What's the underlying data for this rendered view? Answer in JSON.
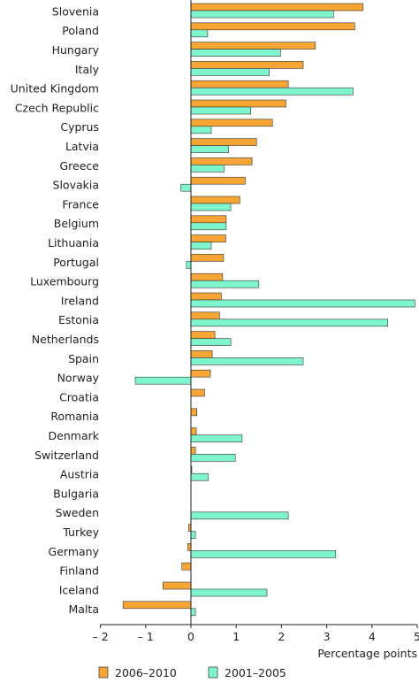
{
  "chart_data": {
    "type": "bar",
    "orientation": "horizontal",
    "categories": [
      "Slovenia",
      "Poland",
      "Hungary",
      "Italy",
      "United Kingdom",
      "Czech Republic",
      "Cyprus",
      "Latvia",
      "Greece",
      "Slovakia",
      "France",
      "Belgium",
      "Lithuania",
      "Portugal",
      "Luxembourg",
      "Ireland",
      "Estonia",
      "Netherlands",
      "Spain",
      "Norway",
      "Croatia",
      "Romania",
      "Denmark",
      "Switzerland",
      "Austria",
      "Bulgaria",
      "Sweden",
      "Turkey",
      "Germany",
      "Finland",
      "Iceland",
      "Malta"
    ],
    "series": [
      {
        "name": "2006–2010",
        "color": "#f7a535",
        "values": [
          3.8,
          3.62,
          2.75,
          2.48,
          2.15,
          2.1,
          1.8,
          1.45,
          1.35,
          1.2,
          1.08,
          0.78,
          0.77,
          0.72,
          0.7,
          0.67,
          0.63,
          0.53,
          0.47,
          0.43,
          0.3,
          0.13,
          0.12,
          0.1,
          0.02,
          0.0,
          0.0,
          -0.05,
          -0.07,
          -0.2,
          -0.62,
          -1.5
        ]
      },
      {
        "name": "2001–2005",
        "color": "#7ef5cc",
        "values": [
          3.15,
          0.37,
          1.98,
          1.73,
          3.58,
          1.32,
          0.45,
          0.83,
          0.73,
          -0.22,
          0.88,
          0.78,
          0.45,
          -0.1,
          1.5,
          4.95,
          4.35,
          0.88,
          2.48,
          -1.23,
          0.0,
          0.0,
          1.13,
          0.98,
          0.38,
          0.0,
          2.15,
          0.1,
          3.2,
          0.0,
          1.68,
          0.1
        ]
      }
    ],
    "xlim": [
      -2,
      5
    ],
    "xticks": [
      -2,
      -1,
      0,
      1,
      2,
      3,
      4,
      5
    ],
    "xtick_labels": [
      "– 2",
      "– 1",
      "0",
      "1",
      "2",
      "3",
      "4",
      "5"
    ],
    "xlabel": "Percentage points",
    "legend_position": "bottom",
    "grid": false
  }
}
